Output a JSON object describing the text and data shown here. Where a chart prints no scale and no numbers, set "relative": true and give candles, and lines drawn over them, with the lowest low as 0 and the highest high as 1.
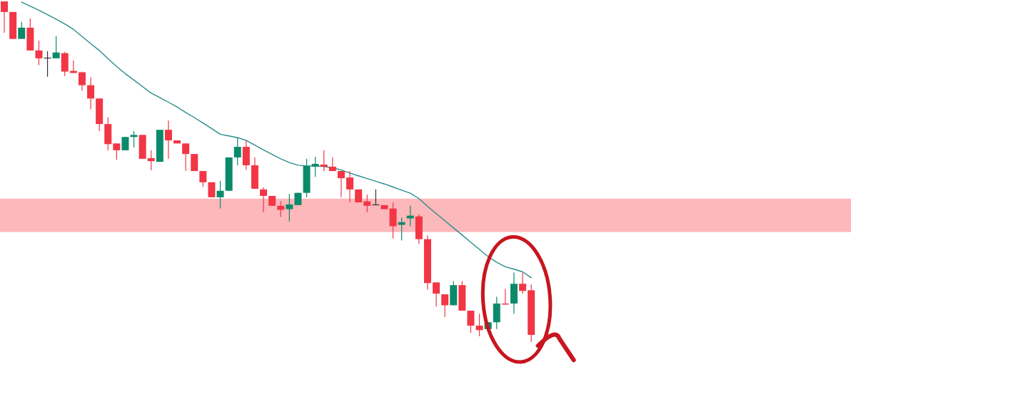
{
  "chart_data": {
    "type": "candlestick",
    "relative": true,
    "categories": [
      null,
      null,
      null,
      null,
      null,
      null,
      null,
      null,
      null,
      null,
      null,
      null,
      null,
      null,
      null,
      null,
      null,
      null,
      null,
      null,
      null,
      null,
      null,
      null,
      null,
      null,
      null,
      null,
      null,
      null,
      null,
      null,
      null,
      null,
      null,
      null,
      null,
      null,
      null,
      null,
      null,
      null,
      null,
      null,
      null,
      null,
      null,
      null,
      null,
      null,
      null,
      null,
      null,
      null,
      null,
      null,
      null,
      null,
      null,
      null,
      null,
      null
    ],
    "ohlc": [
      [
        1,
        1,
        0.908,
        0.969
      ],
      [
        0.969,
        0.969,
        0.89,
        0.89
      ],
      [
        0.89,
        0.94,
        0.89,
        0.923
      ],
      [
        0.923,
        0.95,
        0.856,
        0.856
      ],
      [
        0.856,
        0.885,
        0.813,
        0.833
      ],
      [
        0.835,
        0.854,
        0.779,
        0.834
      ],
      [
        0.833,
        0.898,
        0.833,
        0.85
      ],
      [
        0.848,
        0.852,
        0.781,
        0.794
      ],
      [
        0.796,
        0.827,
        0.79,
        0.79
      ],
      [
        0.792,
        0.794,
        0.738,
        0.754
      ],
      [
        0.754,
        0.777,
        0.683,
        0.715
      ],
      [
        0.715,
        0.715,
        0.619,
        0.64
      ],
      [
        0.64,
        0.66,
        0.563,
        0.581
      ],
      [
        0.583,
        0.583,
        0.535,
        0.563
      ],
      [
        0.563,
        0.602,
        0.563,
        0.602
      ],
      [
        0.602,
        0.619,
        0.571,
        0.608
      ],
      [
        0.608,
        0.608,
        0.538,
        0.538
      ],
      [
        0.54,
        0.563,
        0.504,
        0.531
      ],
      [
        0.529,
        0.623,
        0.529,
        0.623
      ],
      [
        0.623,
        0.65,
        0.538,
        0.592
      ],
      [
        0.592,
        0.592,
        0.583,
        0.583
      ],
      [
        0.583,
        0.583,
        0.502,
        0.552
      ],
      [
        0.552,
        0.552,
        0.502,
        0.502
      ],
      [
        0.502,
        0.502,
        0.456,
        0.469
      ],
      [
        0.469,
        0.469,
        0.425,
        0.425
      ],
      [
        0.425,
        0.473,
        0.392,
        0.444
      ],
      [
        0.444,
        0.542,
        0.444,
        0.542
      ],
      [
        0.542,
        0.6,
        0.519,
        0.573
      ],
      [
        0.573,
        0.59,
        0.506,
        0.519
      ],
      [
        0.519,
        0.542,
        0.45,
        0.45
      ],
      [
        0.448,
        0.454,
        0.381,
        0.429
      ],
      [
        0.429,
        0.429,
        0.4,
        0.4
      ],
      [
        0.4,
        0.413,
        0.367,
        0.388
      ],
      [
        0.39,
        0.435,
        0.354,
        0.404
      ],
      [
        0.402,
        0.438,
        0.402,
        0.438
      ],
      [
        0.438,
        0.538,
        0.425,
        0.517
      ],
      [
        0.515,
        0.544,
        0.485,
        0.523
      ],
      [
        0.521,
        0.563,
        0.502,
        0.515
      ],
      [
        0.515,
        0.542,
        0.502,
        0.502
      ],
      [
        0.502,
        0.502,
        0.425,
        0.481
      ],
      [
        0.483,
        0.502,
        0.41,
        0.448
      ],
      [
        0.448,
        0.448,
        0.41,
        0.41
      ],
      [
        0.413,
        0.433,
        0.381,
        0.4
      ],
      [
        0.404,
        0.448,
        0.402,
        0.402
      ],
      [
        0.402,
        0.402,
        0.39,
        0.39
      ],
      [
        0.392,
        0.41,
        0.304,
        0.34
      ],
      [
        0.344,
        0.365,
        0.298,
        0.352
      ],
      [
        0.363,
        0.4,
        0.34,
        0.371
      ],
      [
        0.369,
        0.375,
        0.288,
        0.302
      ],
      [
        0.302,
        0.313,
        0.154,
        0.173
      ],
      [
        0.175,
        0.175,
        0.104,
        0.142
      ],
      [
        0.14,
        0.14,
        0.073,
        0.108
      ],
      [
        0.108,
        0.179,
        0.108,
        0.167
      ],
      [
        0.167,
        0.179,
        0.092,
        0.092
      ],
      [
        0.092,
        0.092,
        0.027,
        0.048
      ],
      [
        0.048,
        0.083,
        0.017,
        0.035
      ],
      [
        0.038,
        0.058,
        0.038,
        0.058
      ],
      [
        0.058,
        0.133,
        0.038,
        0.113
      ],
      [
        0.113,
        0.156,
        0.11,
        0.11
      ],
      [
        0.113,
        0.204,
        0.083,
        0.171
      ],
      [
        0.171,
        0.204,
        0.142,
        0.15
      ],
      [
        0.152,
        0.169,
        0,
        0.021
      ]
    ],
    "colors": [
      "#f23645",
      "#f23645",
      "#0b8a6b",
      "#f23645",
      "#f23645",
      "#333333",
      "#0b8a6b",
      "#f23645",
      "#f23645",
      "#f23645",
      "#f23645",
      "#f23645",
      "#f23645",
      "#f23645",
      "#0b8a6b",
      "#0b8a6b",
      "#f23645",
      "#f23645",
      "#0b8a6b",
      "#f23645",
      "#f23645",
      "#f23645",
      "#f23645",
      "#f23645",
      "#f23645",
      "#0b8a6b",
      "#0b8a6b",
      "#0b8a6b",
      "#f23645",
      "#f23645",
      "#f23645",
      "#f23645",
      "#f23645",
      "#0b8a6b",
      "#0b8a6b",
      "#0b8a6b",
      "#0b8a6b",
      "#f23645",
      "#f23645",
      "#f23645",
      "#f23645",
      "#f23645",
      "#f23645",
      "#333333",
      "#f23645",
      "#f23645",
      "#0b8a6b",
      "#0b8a6b",
      "#f23645",
      "#f23645",
      "#f23645",
      "#f23645",
      "#0b8a6b",
      "#f23645",
      "#f23645",
      "#f23645",
      "#0b8a6b",
      "#0b8a6b",
      "#f23645",
      "#0b8a6b",
      "#f23645",
      "#f23645"
    ],
    "series": [
      {
        "type": "line",
        "color": "#2a8c8c",
        "values": [
          null,
          null,
          0.998,
          0.986,
          0.974,
          0.961,
          0.948,
          0.934,
          0.918,
          0.897,
          0.876,
          0.856,
          0.832,
          0.809,
          0.788,
          0.769,
          0.75,
          0.731,
          0.718,
          0.704,
          0.69,
          0.674,
          0.659,
          0.643,
          0.627,
          0.61,
          0.605,
          0.6,
          0.592,
          0.578,
          0.564,
          0.551,
          0.538,
          0.527,
          0.519,
          0.517,
          0.517,
          0.515,
          0.512,
          0.505,
          0.496,
          0.488,
          0.48,
          0.472,
          0.464,
          0.455,
          0.446,
          0.437,
          0.421,
          0.398,
          0.377,
          0.356,
          0.335,
          0.314,
          0.293,
          0.272,
          0.251,
          0.234,
          0.221,
          0.214,
          0.206,
          0.189
        ]
      }
    ],
    "bands": [
      {
        "axis": "y",
        "from": 0.323,
        "to": 0.421,
        "color": "#fdb8bb"
      }
    ]
  }
}
